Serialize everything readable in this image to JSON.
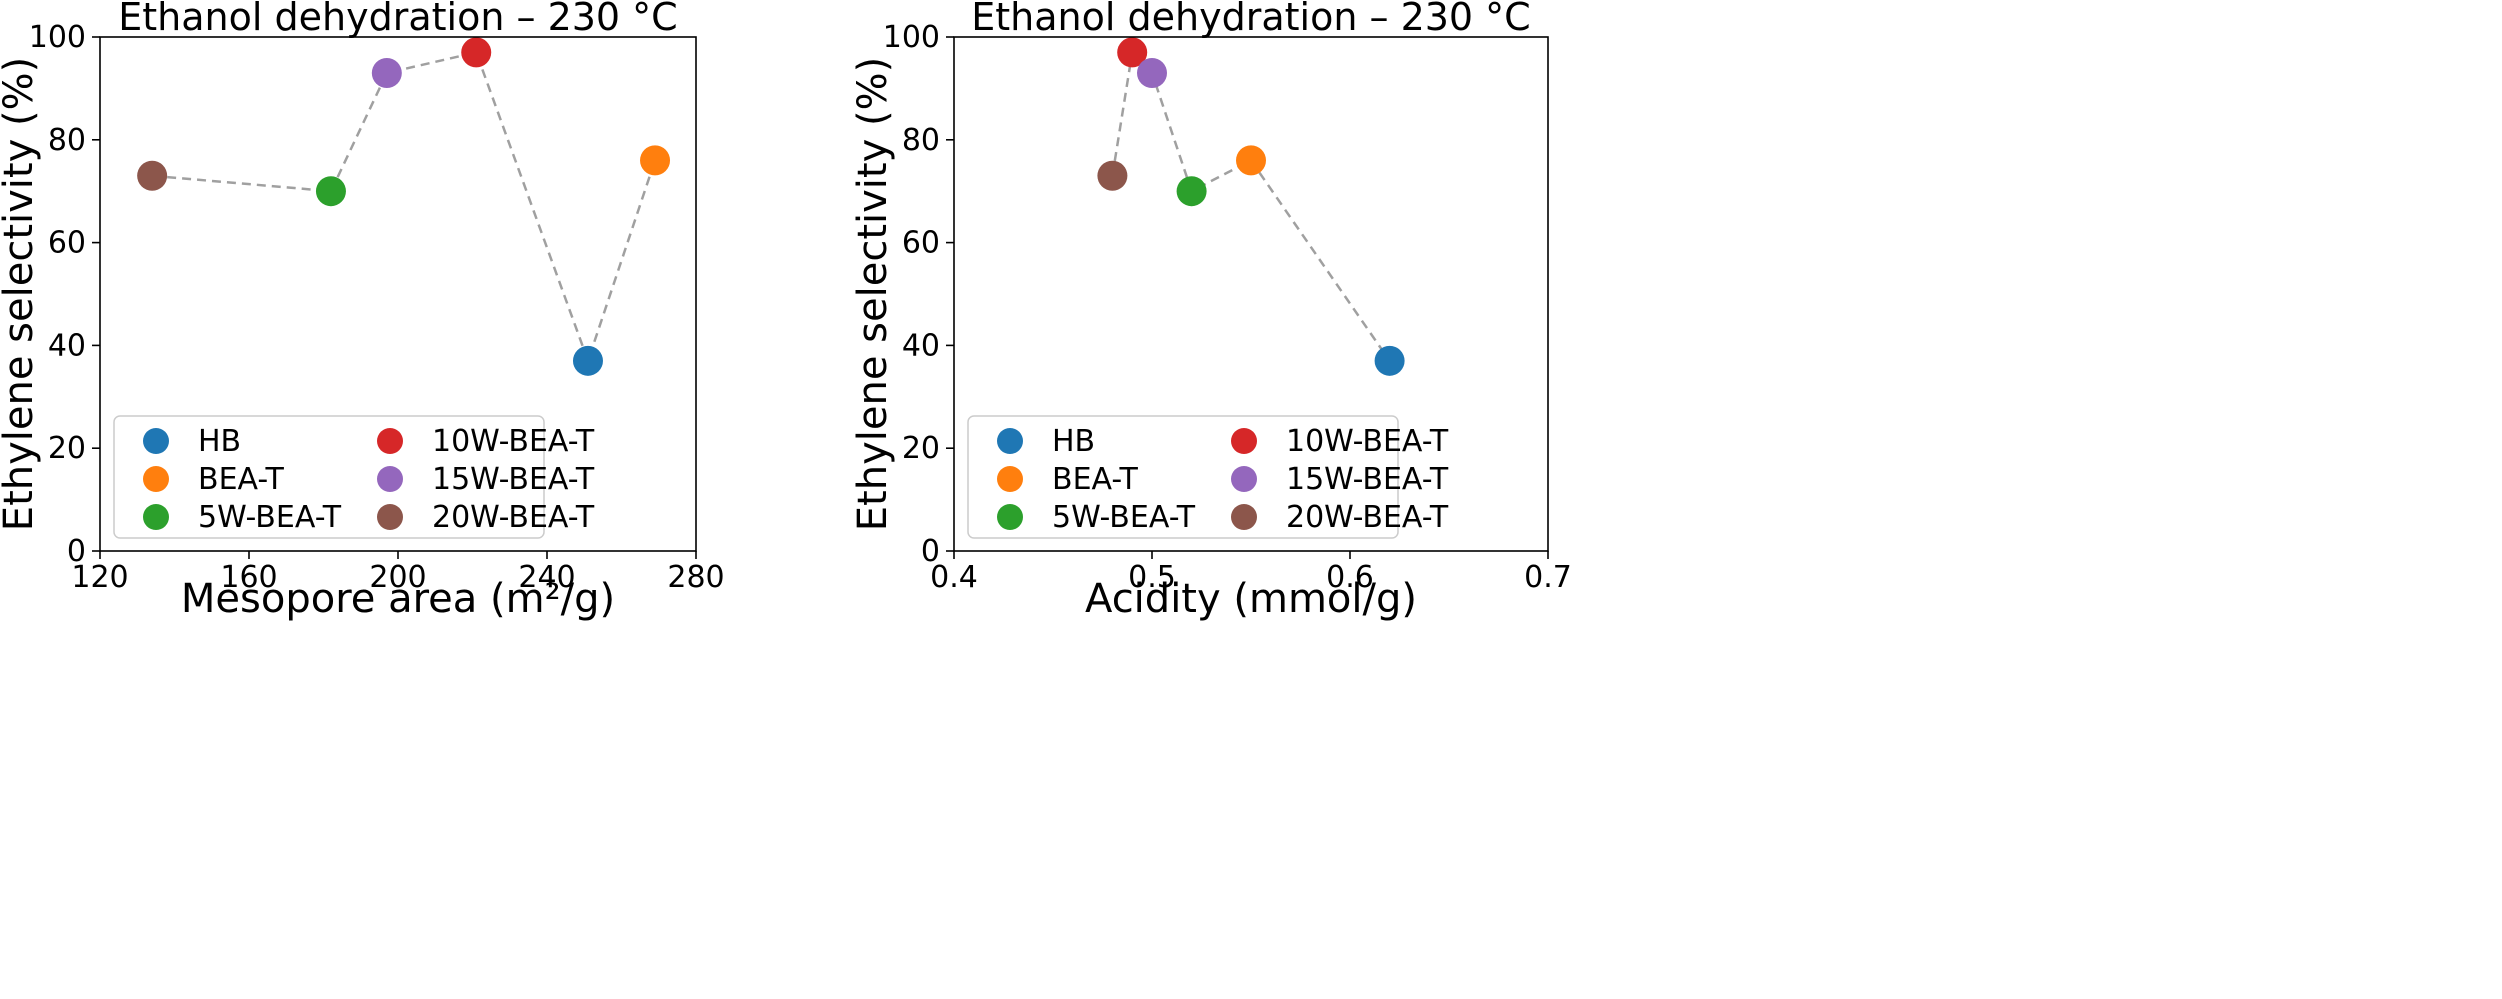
{
  "colors": {
    "HB": "#1f77b4",
    "BEA-T": "#ff7f0e",
    "5W-BEA-T": "#2ca02c",
    "10W-BEA-T": "#d62728",
    "15W-BEA-T": "#9467bd",
    "20W-BEA-T": "#8c564b"
  },
  "chart_data": [
    {
      "type": "scatter",
      "title": "Ethanol dehydration – 230 °C",
      "xlabel": "Mesopore area (m²/g)",
      "ylabel": "Ethylene selectivity (%)",
      "xlim": [
        120,
        280
      ],
      "ylim": [
        0,
        100
      ],
      "xticks": [
        120,
        160,
        200,
        240,
        280
      ],
      "xtick_labels": [
        "120",
        "160",
        "200",
        "240",
        "280"
      ],
      "yticks": [
        0,
        20,
        40,
        60,
        80,
        100
      ],
      "ytick_labels": [
        "0",
        "20",
        "40",
        "60",
        "80",
        "100"
      ],
      "grid": false,
      "legend_position": "lower-left",
      "legend_entries": [
        "HB",
        "BEA-T",
        "5W-BEA-T",
        "10W-BEA-T",
        "15W-BEA-T",
        "20W-BEA-T"
      ],
      "points": [
        {
          "label": "HB",
          "x": 251,
          "y": 37
        },
        {
          "label": "BEA-T",
          "x": 269,
          "y": 76
        },
        {
          "label": "5W-BEA-T",
          "x": 182,
          "y": 70
        },
        {
          "label": "10W-BEA-T",
          "x": 221,
          "y": 97
        },
        {
          "label": "15W-BEA-T",
          "x": 197,
          "y": 93
        },
        {
          "label": "20W-BEA-T",
          "x": 134,
          "y": 73
        }
      ],
      "line_order": [
        "20W-BEA-T",
        "5W-BEA-T",
        "15W-BEA-T",
        "10W-BEA-T",
        "HB",
        "BEA-T"
      ]
    },
    {
      "type": "scatter",
      "title": "Ethanol dehydration – 230 °C",
      "xlabel": "Acidity (mmol/g)",
      "ylabel": "Ethylene selectivity (%)",
      "xlim": [
        0.4,
        0.7
      ],
      "ylim": [
        0,
        100
      ],
      "xticks": [
        0.4,
        0.5,
        0.6,
        0.7
      ],
      "xtick_labels": [
        "0.4",
        "0.5",
        "0.6",
        "0.7"
      ],
      "yticks": [
        0,
        20,
        40,
        60,
        80,
        100
      ],
      "ytick_labels": [
        "0",
        "20",
        "40",
        "60",
        "80",
        "100"
      ],
      "grid": false,
      "legend_position": "lower-left",
      "legend_entries": [
        "HB",
        "BEA-T",
        "5W-BEA-T",
        "10W-BEA-T",
        "15W-BEA-T",
        "20W-BEA-T"
      ],
      "points": [
        {
          "label": "HB",
          "x": 0.62,
          "y": 37
        },
        {
          "label": "BEA-T",
          "x": 0.55,
          "y": 76
        },
        {
          "label": "5W-BEA-T",
          "x": 0.52,
          "y": 70
        },
        {
          "label": "10W-BEA-T",
          "x": 0.49,
          "y": 97
        },
        {
          "label": "15W-BEA-T",
          "x": 0.5,
          "y": 93
        },
        {
          "label": "20W-BEA-T",
          "x": 0.48,
          "y": 73
        }
      ],
      "line_order": [
        "20W-BEA-T",
        "10W-BEA-T",
        "15W-BEA-T",
        "5W-BEA-T",
        "BEA-T",
        "HB"
      ]
    }
  ]
}
